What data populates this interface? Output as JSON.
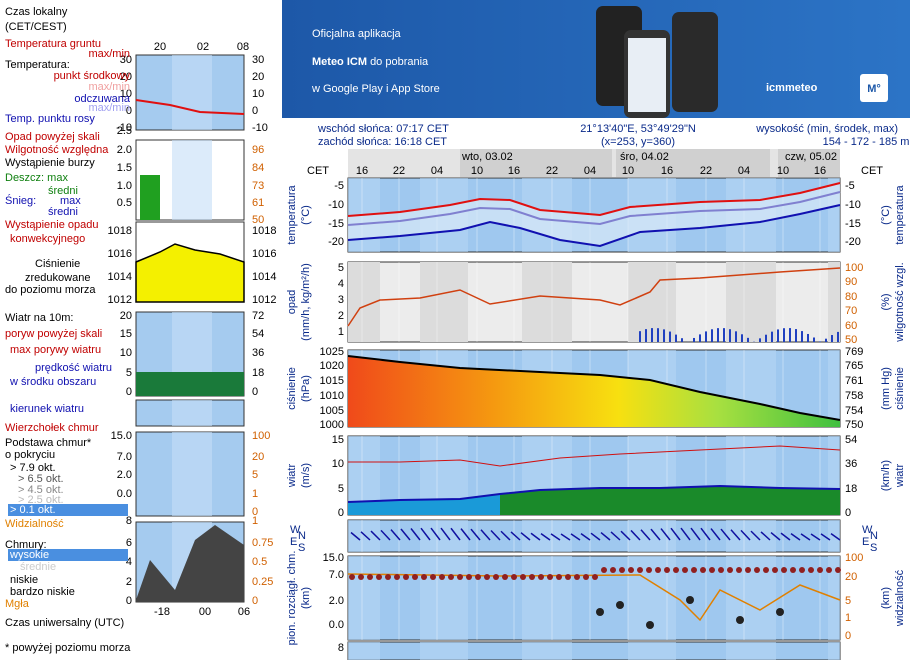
{
  "banner": {
    "line1": "Oficjalna aplikacja",
    "line2_bold": "Meteo ICM",
    "line2_rest": "do pobrania",
    "line3": "w Google Play i App Store",
    "logo": "icmmeteo",
    "badge": "M°"
  },
  "info": {
    "sunrise": "wschód słońca: 07:17 CET",
    "sunset": "zachód słońca: 16:18 CET",
    "coords": "21°13'40\"E, 53°49'29\"N",
    "grid": "(x=253,  y=360)",
    "elevation_label": "wysokość (min, środek, max)",
    "elevation": "154 - 172 - 185 m"
  },
  "timeline": {
    "zone": "CET",
    "days": [
      "wto, 03.02",
      "śro, 04.02",
      "czw, 05.02"
    ],
    "hours": [
      "16",
      "22",
      "04",
      "10",
      "16",
      "22",
      "04",
      "10",
      "16",
      "22",
      "04",
      "10",
      "16"
    ]
  },
  "panels": [
    {
      "left_label": [
        "temperatura",
        "(°C)"
      ],
      "right_label": [
        "(°C)",
        "temperatura"
      ],
      "left_ticks": [
        "-5",
        "-10",
        "-15",
        "-20"
      ],
      "right_ticks": [
        "-5",
        "-10",
        "-15",
        "-20"
      ]
    },
    {
      "left_label": [
        "opad",
        "(mm/h, kg/m²/h)"
      ],
      "right_label": [
        "(%)",
        "wilgotność wzgl."
      ],
      "left_ticks": [
        "5",
        "4",
        "3",
        "2",
        "1"
      ],
      "right_ticks": [
        "100",
        "90",
        "80",
        "70",
        "60",
        "50"
      ]
    },
    {
      "left_label": [
        "ciśnienie",
        "(hPa)"
      ],
      "right_label": [
        "(mm Hg)",
        "ciśnienie"
      ],
      "left_ticks": [
        "1025",
        "1020",
        "1015",
        "1010",
        "1005",
        "1000"
      ],
      "right_ticks": [
        "769",
        "765",
        "761",
        "758",
        "754",
        "750"
      ]
    },
    {
      "left_label": [
        "wiatr",
        "(m/s)"
      ],
      "right_label": [
        "(km/h)",
        "wiatr"
      ],
      "left_ticks": [
        "15",
        "10",
        "5",
        "0"
      ],
      "right_ticks": [
        "54",
        "36",
        "18",
        "0"
      ]
    },
    {
      "left_label": [],
      "right_label": [],
      "left_ticks": [],
      "right_ticks": []
    },
    {
      "left_label": [
        "pion. rozciągł. chm.",
        "(km)"
      ],
      "right_label": [
        "(km)",
        "widzialność"
      ],
      "left_ticks": [
        "15.0",
        "7.0",
        "2.0",
        "0.0"
      ],
      "right_ticks": [
        "100",
        "20",
        "5",
        "1",
        "0"
      ]
    },
    {
      "left_label": [],
      "right_label": [],
      "left_ticks": [
        "8"
      ],
      "right_ticks": []
    }
  ],
  "compass": [
    "W",
    "N",
    "E",
    "S"
  ],
  "legend": [
    "Czas lokalny",
    "(CET/CEST)",
    "Temperatura gruntu",
    "max/min",
    "Temperatura:",
    "punkt środkowy",
    "max/min",
    "odczuwana",
    "max/min",
    "Temp. punktu rosy",
    "Opad powyżej skali",
    "Wilgotność względna",
    "Wystąpienie burzy",
    "Deszcz: max",
    "średni",
    "Śnieg:",
    "max",
    "średni",
    "Wystąpienie opadu",
    "konwekcyjnego",
    "Ciśnienie",
    "zredukowane",
    "do poziomu morza",
    "Wiatr na 10m:",
    "poryw powyżej skali",
    "max porywy wiatru",
    "prędkość wiatru",
    "w środku obszaru",
    "kierunek wiatru",
    "Wierzchołek chmur",
    "Podstawa chmur*",
    "o pokryciu",
    "> 7.9 okt.",
    "> 6.5 okt.",
    "> 4.5 okt.",
    "> 2.5 okt.",
    "> 0.1 okt.",
    "Widzialność",
    "Chmury:",
    "wysokie",
    "średnie",
    "niskie",
    "bardzo niskie",
    "Mgła",
    "Czas uniwersalny (UTC)",
    "* powyżej poziomu morza"
  ],
  "mini": {
    "top_hours": [
      "20",
      "02",
      "08"
    ],
    "bottom_hours": [
      "-18",
      "00",
      "06"
    ],
    "panels": [
      {
        "left": [
          "30",
          "20",
          "10",
          "0",
          "-10"
        ],
        "right": [
          "30",
          "20",
          "10",
          "0",
          "-10"
        ]
      },
      {
        "left": [
          "2.5",
          "2.0",
          "1.5",
          "1.0",
          "0.5"
        ],
        "right": [
          "96",
          "84",
          "73",
          "61",
          "50"
        ]
      },
      {
        "left": [
          "1018",
          "1016",
          "1014",
          "1012"
        ],
        "right": [
          "1018",
          "1016",
          "1014",
          "1012"
        ]
      },
      {
        "left": [
          "20",
          "15",
          "10",
          "5",
          "0"
        ],
        "right": [
          "72",
          "54",
          "36",
          "18",
          "0"
        ]
      },
      {
        "left": [
          "15.0",
          "7.0",
          "2.0",
          "0.0"
        ],
        "right": [
          "100",
          "20",
          "5",
          "1",
          "0"
        ]
      },
      {
        "left": [
          "8",
          "6",
          "4",
          "2",
          "0"
        ],
        "right": [
          "1",
          "0.75",
          "0.5",
          "0.25",
          "0"
        ]
      }
    ]
  }
}
